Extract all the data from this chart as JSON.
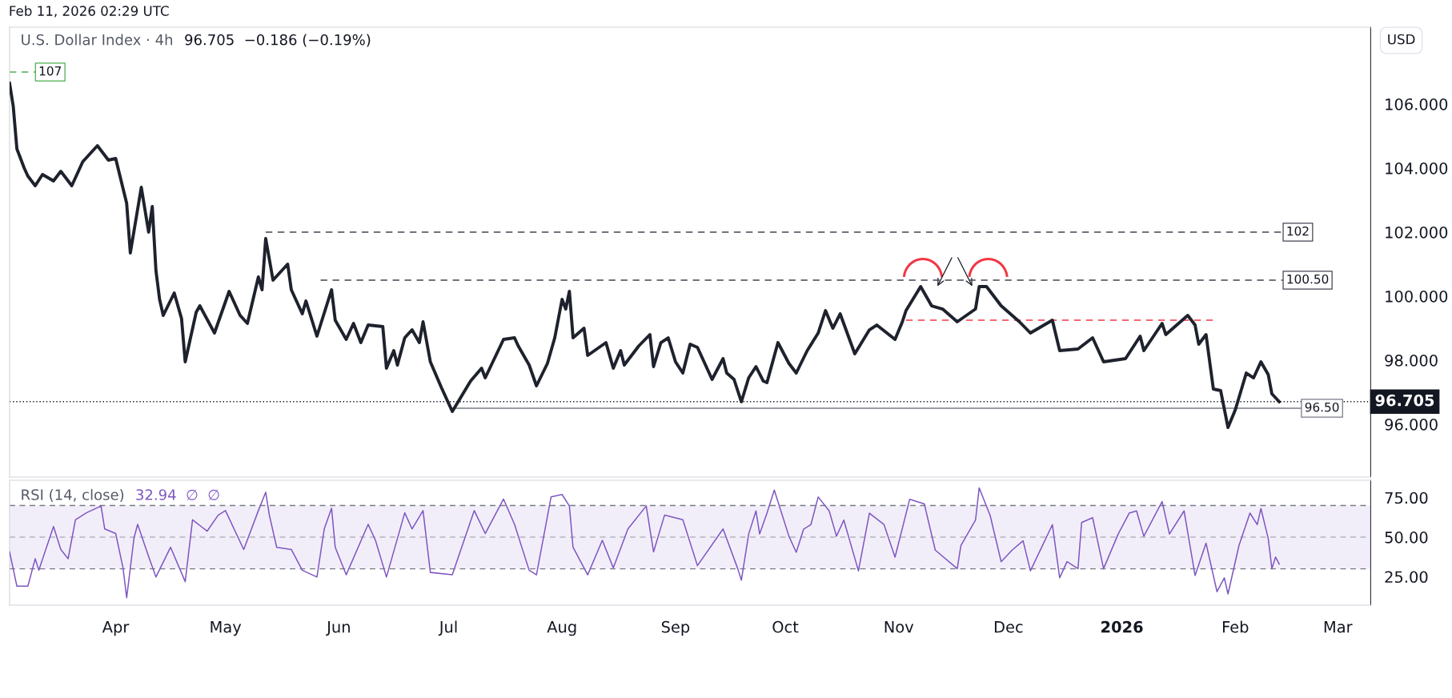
{
  "chart_data": [
    {
      "type": "line",
      "title": "U.S. Dollar Index · 4h",
      "subtitle": "96.705  −0.186 (−0.19%)",
      "ylabel": "USD",
      "annotations": [
        "Feb 11, 2026 02:29 UTC"
      ],
      "tick_labels": "y",
      "xlim": [
        "2025-03-03",
        "2026-03-10"
      ],
      "xticks": [
        {
          "value": "2025-04-01",
          "label": null
        },
        {
          "value": "2025-05-01",
          "label": null
        },
        {
          "value": "2025-06-01",
          "label": null
        },
        {
          "value": "2025-07-01",
          "label": null
        },
        {
          "value": "2025-08-01",
          "label": null
        },
        {
          "value": "2025-09-01",
          "label": null
        },
        {
          "value": "2025-10-01",
          "label": null
        },
        {
          "value": "2025-11-01",
          "label": null
        },
        {
          "value": "2025-12-01",
          "label": null
        },
        {
          "value": "2026-01-01",
          "label": null
        },
        {
          "value": "2026-02-01",
          "label": null
        },
        {
          "value": "2026-03-01",
          "label": null
        }
      ],
      "ylim": [
        94.35,
        108.4
      ],
      "yticks": [
        {
          "value": 96,
          "label": "96.000"
        },
        {
          "value": 98,
          "label": "98.000"
        },
        {
          "value": 100,
          "label": "100.000"
        },
        {
          "value": 102,
          "label": "102.000"
        },
        {
          "value": 104,
          "label": "104.000"
        },
        {
          "value": 106,
          "label": "106.000"
        }
      ],
      "ref_lines": [
        {
          "axis": "y",
          "value": 96.705,
          "label": "96.705",
          "color": "#131722",
          "line_style": "dotted"
        }
      ],
      "series": [
        {
          "color": "#1e222d",
          "line_style": "solid",
          "x": [
            "2025-03-03",
            "2025-03-04",
            "2025-03-05",
            "2025-03-07",
            "2025-03-08",
            "2025-03-10",
            "2025-03-12",
            "2025-03-15",
            "2025-03-17",
            "2025-03-20",
            "2025-03-23",
            "2025-03-27",
            "2025-03-30",
            "2025-04-01",
            "2025-04-04",
            "2025-04-05",
            "2025-04-08",
            "2025-04-10",
            "2025-04-11",
            "2025-04-12",
            "2025-04-13",
            "2025-04-14",
            "2025-04-17",
            "2025-04-19",
            "2025-04-20",
            "2025-04-23",
            "2025-04-24",
            "2025-04-28",
            "2025-05-02",
            "2025-05-05",
            "2025-05-07",
            "2025-05-10",
            "2025-05-11",
            "2025-05-12",
            "2025-05-14",
            "2025-05-18",
            "2025-05-19",
            "2025-05-22",
            "2025-05-23",
            "2025-05-26",
            "2025-05-30",
            "2025-05-31",
            "2025-06-03",
            "2025-06-05",
            "2025-06-07",
            "2025-06-09",
            "2025-06-13",
            "2025-06-14",
            "2025-06-16",
            "2025-06-17",
            "2025-06-19",
            "2025-06-21",
            "2025-06-23",
            "2025-06-24",
            "2025-06-26",
            "2025-06-29",
            "2025-07-02",
            "2025-07-07",
            "2025-07-10",
            "2025-07-11",
            "2025-07-16",
            "2025-07-19",
            "2025-07-20",
            "2025-07-23",
            "2025-07-25",
            "2025-07-28",
            "2025-07-30",
            "2025-08-01",
            "2025-08-02",
            "2025-08-03",
            "2025-08-04",
            "2025-08-07",
            "2025-08-08",
            "2025-08-13",
            "2025-08-15",
            "2025-08-17",
            "2025-08-18",
            "2025-08-22",
            "2025-08-25",
            "2025-08-26",
            "2025-08-28",
            "2025-08-30",
            "2025-09-01",
            "2025-09-03",
            "2025-09-05",
            "2025-09-07",
            "2025-09-11",
            "2025-09-14",
            "2025-09-15",
            "2025-09-17",
            "2025-09-19",
            "2025-09-21",
            "2025-09-23",
            "2025-09-25",
            "2025-09-26",
            "2025-09-29",
            "2025-10-02",
            "2025-10-04",
            "2025-10-07",
            "2025-10-10",
            "2025-10-12",
            "2025-10-14",
            "2025-10-16",
            "2025-10-20",
            "2025-10-24",
            "2025-10-26",
            "2025-10-31",
            "2025-11-02",
            "2025-11-03",
            "2025-11-07",
            "2025-11-10",
            "2025-11-13",
            "2025-11-17",
            "2025-11-22",
            "2025-11-23",
            "2025-11-25",
            "2025-11-29",
            "2025-12-04",
            "2025-12-07",
            "2025-12-13",
            "2025-12-15",
            "2025-12-20",
            "2025-12-24",
            "2025-12-27",
            "2026-01-02",
            "2026-01-06",
            "2026-01-07",
            "2026-01-12",
            "2026-01-13",
            "2026-01-19",
            "2026-01-21",
            "2026-01-22",
            "2026-01-24",
            "2026-01-26",
            "2026-01-28",
            "2026-01-30",
            "2026-02-01",
            "2026-02-04",
            "2026-02-06",
            "2026-02-08",
            "2026-02-10",
            "2026-02-11",
            "2026-02-13"
          ],
          "values": [
            106.65,
            105.93,
            104.6,
            104.0,
            103.75,
            103.45,
            103.8,
            103.6,
            103.9,
            103.45,
            104.2,
            104.7,
            104.25,
            104.3,
            102.9,
            101.35,
            103.4,
            102.0,
            102.8,
            100.8,
            99.9,
            99.4,
            100.1,
            99.3,
            97.95,
            99.5,
            99.7,
            98.85,
            100.15,
            99.4,
            99.15,
            100.6,
            100.2,
            101.8,
            100.5,
            101.0,
            100.2,
            99.45,
            99.85,
            98.75,
            100.2,
            99.25,
            98.65,
            99.15,
            98.55,
            99.1,
            99.05,
            97.75,
            98.3,
            97.85,
            98.7,
            98.95,
            98.55,
            99.2,
            97.95,
            97.15,
            96.4,
            97.35,
            97.75,
            97.45,
            98.65,
            98.7,
            98.45,
            97.85,
            97.2,
            97.9,
            98.7,
            99.9,
            99.6,
            100.15,
            98.7,
            99.0,
            98.15,
            98.55,
            97.75,
            98.3,
            97.85,
            98.45,
            98.8,
            97.8,
            98.55,
            98.7,
            97.95,
            97.6,
            98.5,
            98.4,
            97.4,
            98.05,
            97.6,
            97.4,
            96.7,
            97.45,
            97.8,
            97.35,
            97.3,
            98.55,
            97.9,
            97.6,
            98.3,
            98.85,
            99.55,
            99.0,
            99.45,
            98.2,
            98.95,
            99.1,
            98.65,
            99.2,
            99.55,
            100.3,
            99.7,
            99.6,
            99.2,
            99.6,
            100.3,
            100.3,
            99.7,
            99.2,
            98.85,
            99.25,
            98.3,
            98.35,
            98.7,
            97.95,
            98.05,
            98.75,
            98.3,
            99.15,
            98.8,
            99.4,
            99.1,
            98.5,
            98.8,
            97.1,
            97.05,
            95.9,
            96.45,
            97.6,
            97.45,
            97.95,
            97.55,
            96.95,
            96.705
          ]
        },
        {
          "name": "107",
          "color": "#4caf50",
          "line_style": "dashed",
          "x": [
            "2025-03-03",
            "2025-03-10"
          ],
          "values": [
            107,
            107
          ]
        },
        {
          "name": "102",
          "color": "#434651",
          "line_style": "dashed",
          "x": [
            "2025-05-12",
            "2026-02-14"
          ],
          "values": [
            102,
            102
          ]
        },
        {
          "name": "100.50",
          "color": "#434651",
          "line_style": "dashed",
          "x": [
            "2025-05-27",
            "2026-02-14"
          ],
          "values": [
            100.5,
            100.5
          ]
        },
        {
          "name": "96.50",
          "color": "#787b86",
          "line_style": "solid",
          "x": [
            "2025-07-02",
            "2026-02-19"
          ],
          "values": [
            96.5,
            96.5
          ]
        },
        {
          "color": "#f23645",
          "line_style": "dashed",
          "x": [
            "2025-11-03",
            "2026-01-26"
          ],
          "values": [
            99.25,
            99.25
          ]
        }
      ]
    },
    {
      "type": "line",
      "title": "RSI (14, close)",
      "subtitle": "32.94  ∅  ∅",
      "xlim": [
        "2025-03-03",
        "2026-03-10"
      ],
      "xticks": [
        {
          "value": "2025-04-01",
          "label": "Apr"
        },
        {
          "value": "2025-05-01",
          "label": "May"
        },
        {
          "value": "2025-06-01",
          "label": "Jun"
        },
        {
          "value": "2025-07-01",
          "label": "Jul"
        },
        {
          "value": "2025-08-01",
          "label": "Aug"
        },
        {
          "value": "2025-09-01",
          "label": "Sep"
        },
        {
          "value": "2025-10-01",
          "label": "Oct"
        },
        {
          "value": "2025-11-01",
          "label": "Nov"
        },
        {
          "value": "2025-12-01",
          "label": "Dec"
        },
        {
          "value": "2026-01-01",
          "label": "2026"
        },
        {
          "value": "2026-02-01",
          "label": "Feb"
        },
        {
          "value": "2026-03-01",
          "label": "Mar"
        }
      ],
      "ylim": [
        7,
        86
      ],
      "yticks": [
        {
          "value": 25,
          "label": "25.00"
        },
        {
          "value": 50,
          "label": "50.00"
        },
        {
          "value": 75,
          "label": "75.00"
        }
      ],
      "bands": [
        {
          "axis": "y",
          "from": 30,
          "to": 70,
          "color": "#7e57c2"
        }
      ],
      "ref_lines": [
        {
          "axis": "y",
          "value": 70,
          "color": "#787b86",
          "line_style": "dashed"
        },
        {
          "axis": "y",
          "value": 50,
          "color": "#b2b5be",
          "line_style": "dashed"
        },
        {
          "axis": "y",
          "value": 30,
          "color": "#787b86",
          "line_style": "dashed"
        }
      ],
      "series": [
        {
          "color": "#7e57c2",
          "line_style": "solid",
          "x": [
            "2025-03-03",
            "2025-03-05",
            "2025-03-08",
            "2025-03-09",
            "2025-03-10",
            "2025-03-11",
            "2025-03-15",
            "2025-03-17",
            "2025-03-19",
            "2025-03-21",
            "2025-03-24",
            "2025-03-28",
            "2025-03-29",
            "2025-04-01",
            "2025-04-03",
            "2025-04-04",
            "2025-04-06",
            "2025-04-07",
            "2025-04-10",
            "2025-04-12",
            "2025-04-16",
            "2025-04-20",
            "2025-04-22",
            "2025-04-26",
            "2025-04-29",
            "2025-05-01",
            "2025-05-06",
            "2025-05-10",
            "2025-05-12",
            "2025-05-13",
            "2025-05-15",
            "2025-05-19",
            "2025-05-22",
            "2025-05-26",
            "2025-05-28",
            "2025-05-30",
            "2025-05-31",
            "2025-06-03",
            "2025-06-09",
            "2025-06-11",
            "2025-06-14",
            "2025-06-19",
            "2025-06-21",
            "2025-06-24",
            "2025-06-26",
            "2025-07-02",
            "2025-07-08",
            "2025-07-11",
            "2025-07-16",
            "2025-07-19",
            "2025-07-23",
            "2025-07-25",
            "2025-07-29",
            "2025-08-01",
            "2025-08-03",
            "2025-08-04",
            "2025-08-08",
            "2025-08-12",
            "2025-08-15",
            "2025-08-19",
            "2025-08-24",
            "2025-08-26",
            "2025-08-29",
            "2025-09-03",
            "2025-09-07",
            "2025-09-14",
            "2025-09-18",
            "2025-09-19",
            "2025-09-21",
            "2025-09-23",
            "2025-09-24",
            "2025-09-26",
            "2025-09-28",
            "2025-10-02",
            "2025-10-04",
            "2025-10-06",
            "2025-10-08",
            "2025-10-10",
            "2025-10-13",
            "2025-10-15",
            "2025-10-17",
            "2025-10-21",
            "2025-10-24",
            "2025-10-28",
            "2025-10-31",
            "2025-11-04",
            "2025-11-08",
            "2025-11-11",
            "2025-11-17",
            "2025-11-18",
            "2025-11-22",
            "2025-11-23",
            "2025-11-26",
            "2025-11-29",
            "2025-12-02",
            "2025-12-05",
            "2025-12-07",
            "2025-12-10",
            "2025-12-13",
            "2025-12-15",
            "2025-12-17",
            "2025-12-20",
            "2025-12-21",
            "2025-12-24",
            "2025-12-27",
            "2025-12-31",
            "2026-01-03",
            "2026-01-05",
            "2026-01-07",
            "2026-01-12",
            "2026-01-14",
            "2026-01-18",
            "2026-01-21",
            "2026-01-24",
            "2026-01-27",
            "2026-01-29",
            "2026-01-30",
            "2026-02-02",
            "2026-02-05",
            "2026-02-07",
            "2026-02-08",
            "2026-02-10",
            "2026-02-11",
            "2026-02-12",
            "2026-02-13"
          ],
          "values": [
            40.7,
            19,
            19,
            27.7,
            36.4,
            29.1,
            56.7,
            42.2,
            36.4,
            61,
            65.4,
            69.7,
            55.2,
            52.3,
            30.6,
            11.7,
            49.4,
            58.1,
            37.8,
            24.8,
            43.6,
            21.9,
            61,
            53.8,
            63.9,
            66.8,
            42.2,
            66.8,
            78.4,
            63.9,
            43.6,
            42.2,
            29.1,
            24.8,
            55.2,
            68.3,
            43.6,
            26.2,
            58.1,
            48,
            24.8,
            65.4,
            55.2,
            66.8,
            27.7,
            26.2,
            66.8,
            52.3,
            74.1,
            58.1,
            29.1,
            26.2,
            75.5,
            77,
            69.7,
            43.6,
            26.2,
            48,
            30.6,
            55.2,
            69.7,
            40.7,
            63.9,
            61,
            32,
            55.2,
            30.1,
            22.8,
            52,
            66.6,
            52,
            65.2,
            79.8,
            50.6,
            40.4,
            55,
            57.9,
            75.4,
            66.6,
            50.6,
            60.8,
            28.7,
            65.2,
            57.9,
            37.4,
            73.9,
            71,
            41.8,
            30.1,
            44.7,
            60.8,
            81.2,
            63.7,
            34.5,
            41.8,
            47.7,
            28.7,
            43.3,
            57.9,
            24.3,
            34.5,
            30.1,
            59.3,
            62.3,
            30.1,
            52,
            65.2,
            66.6,
            50.6,
            72.5,
            52,
            66.6,
            25.8,
            46.2,
            15.5,
            24.3,
            14.1,
            44.7,
            65.2,
            57.9,
            68.1,
            49.1,
            30.1,
            37.4,
            32.94
          ]
        }
      ]
    }
  ]
}
